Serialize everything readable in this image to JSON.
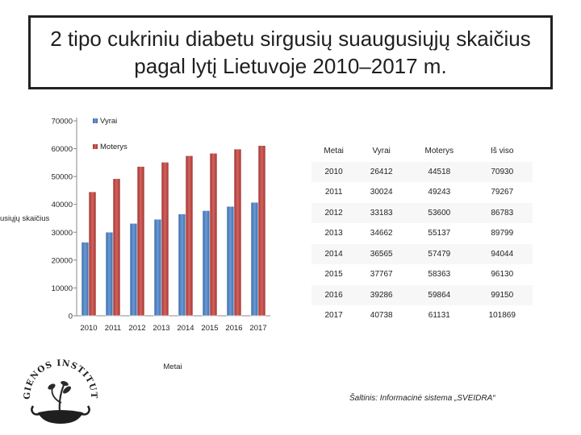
{
  "title": "2 tipo cukriniu diabetu sirgusių suaugusiųjų skaičius pagal lytį Lietuvoje 2010–2017 m.",
  "source": "Šaltinis: Informacinė sistema „SVEIDRA“",
  "logo_text": "HIGIENOS INSTITUTAS",
  "colors": {
    "vyrai": "#4f81bd",
    "moterys": "#c0504d"
  },
  "chart_data": {
    "type": "bar",
    "categories": [
      "2010",
      "2011",
      "2012",
      "2013",
      "2014",
      "2015",
      "2016",
      "2017"
    ],
    "series": [
      {
        "name": "Vyrai",
        "values": [
          26412,
          30024,
          33183,
          34662,
          36565,
          37767,
          39286,
          40738
        ]
      },
      {
        "name": "Moterys",
        "values": [
          44518,
          49243,
          53600,
          55137,
          57479,
          58363,
          59864,
          61131
        ]
      }
    ],
    "xlabel": "Metai",
    "ylabel": "usiųjų skaičius",
    "ylim": [
      0,
      70000
    ],
    "yticks": [
      "0",
      "10000",
      "20000",
      "30000",
      "40000",
      "50000",
      "60000",
      "70000"
    ],
    "legend": "top-right"
  },
  "table": {
    "headers": [
      "Metai",
      "Vyrai",
      "Moterys",
      "Iš viso"
    ],
    "rows": [
      [
        "2010",
        "26412",
        "44518",
        "70930"
      ],
      [
        "2011",
        "30024",
        "49243",
        "79267"
      ],
      [
        "2012",
        "33183",
        "53600",
        "86783"
      ],
      [
        "2013",
        "34662",
        "55137",
        "89799"
      ],
      [
        "2014",
        "36565",
        "57479",
        "94044"
      ],
      [
        "2015",
        "37767",
        "58363",
        "96130"
      ],
      [
        "2016",
        "39286",
        "59864",
        "99150"
      ],
      [
        "2017",
        "40738",
        "61131",
        "101869"
      ]
    ]
  }
}
